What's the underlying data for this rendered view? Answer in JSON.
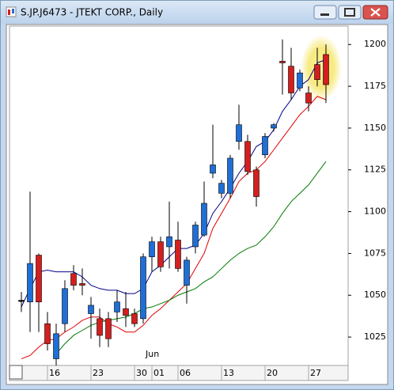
{
  "chart_data": {
    "type": "candlestick",
    "title": "S.JP.J6473 - JTEKT CORP., Daily",
    "categories": [
      null,
      null,
      null,
      "16",
      null,
      null,
      null,
      null,
      "23",
      null,
      null,
      null,
      null,
      "30",
      null,
      "01",
      null,
      null,
      "06",
      null,
      null,
      null,
      null,
      "13",
      null,
      null,
      null,
      null,
      "20",
      null,
      null,
      null,
      null,
      "27",
      null,
      null
    ],
    "annotations": [
      {
        "text": "Jun",
        "category": 15
      }
    ],
    "open": [
      1047,
      1046,
      1074,
      1033,
      1012,
      1033,
      1063,
      1057,
      1039,
      1036,
      1036,
      1040,
      1042,
      1039,
      1036,
      1073,
      1082,
      1079,
      1083,
      1056,
      1079,
      1086,
      1123,
      1111,
      1111,
      1142,
      1142,
      1125,
      1134,
      1150,
      1190,
      1187,
      1174,
      1171,
      1188,
      1194
    ],
    "high": [
      1052,
      1112,
      1075,
      1040,
      1033,
      1059,
      1068,
      1066,
      1049,
      1042,
      1040,
      1053,
      1052,
      1042,
      1075,
      1085,
      1085,
      1106,
      1094,
      1073,
      1094,
      1118,
      1152,
      1119,
      1134,
      1164,
      1146,
      1127,
      1147,
      1153,
      1203,
      1198,
      1185,
      1175,
      1198,
      1200
    ],
    "low": [
      1040,
      1028,
      1028,
      1017,
      1008,
      1028,
      1053,
      1050,
      1024,
      1019,
      1019,
      1034,
      1031,
      1031,
      1033,
      1064,
      1064,
      1066,
      1064,
      1045,
      1075,
      1085,
      1120,
      1108,
      1108,
      1137,
      1122,
      1103,
      1132,
      1148,
      1170,
      1167,
      1172,
      1160,
      1175,
      1165
    ],
    "close": [
      1047,
      1069,
      1046,
      1021,
      1027,
      1054,
      1056,
      1056,
      1044,
      1026,
      1024,
      1046,
      1038,
      1033,
      1073,
      1082,
      1067,
      1085,
      1066,
      1071,
      1092,
      1105,
      1128,
      1117,
      1132,
      1152,
      1124,
      1109,
      1145,
      1152,
      1189,
      1171,
      1183,
      1165,
      1179,
      1176
    ],
    "up_color": "#1f6fd6",
    "down_color": "#d41f1f",
    "flat_color": "#000000",
    "series": [
      {
        "color": "#00008b",
        "values": [
          1043,
          1054,
          1064,
          1065,
          1064,
          1064,
          1064,
          1061,
          1056,
          1054,
          1053,
          1053,
          1051,
          1051,
          1054,
          1064,
          1068,
          1073,
          1078,
          1078,
          1080,
          1087,
          1099,
          1106,
          1114,
          1123,
          1130,
          1139,
          1142,
          1149,
          1160,
          1167,
          1175,
          1179,
          1189,
          1191
        ]
      },
      {
        "color": "#e00000",
        "values": [
          1012,
          1014,
          1019,
          1023,
          1024,
          1028,
          1031,
          1035,
          1037,
          1037,
          1033,
          1031,
          1028,
          1028,
          1032,
          1038,
          1042,
          1047,
          1052,
          1057,
          1066,
          1075,
          1090,
          1099,
          1108,
          1118,
          1123,
          1125,
          1130,
          1137,
          1144,
          1151,
          1158,
          1163,
          1169,
          1167
        ]
      },
      {
        "color": "#007a00",
        "values": [
          null,
          null,
          null,
          null,
          1015,
          1021,
          1026,
          1029,
          1032,
          1034,
          1035,
          1036,
          1037,
          1039,
          1042,
          1043,
          1045,
          1047,
          1050,
          1052,
          1054,
          1058,
          1061,
          1066,
          1071,
          1075,
          1078,
          1080,
          1085,
          1091,
          1099,
          1106,
          1111,
          1116,
          1123,
          1130
        ]
      }
    ],
    "ylim": [
      1008,
      1211
    ],
    "yticks": [
      1025,
      1050,
      1075,
      1100,
      1125,
      1150,
      1175,
      1200
    ],
    "y_axis_side": "right",
    "grid": false
  }
}
